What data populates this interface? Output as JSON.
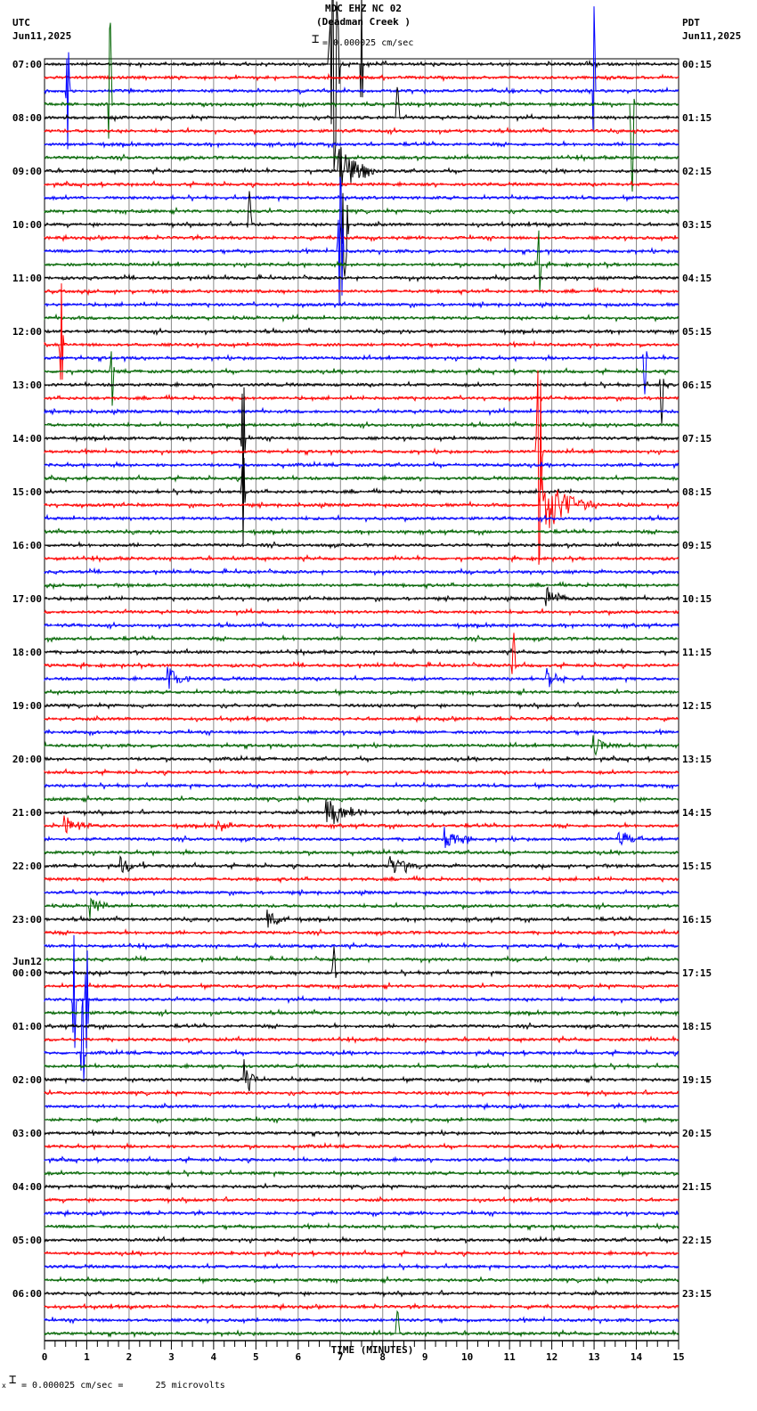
{
  "header": {
    "station": "MDC EHZ NC 02",
    "location": "(Deadman Creek )",
    "left_tz": "UTC",
    "left_date": "Jun11,2025",
    "right_tz": "PDT",
    "right_date": "Jun11,2025",
    "scale_text": "= 0.000025 cm/sec"
  },
  "footer": {
    "scale_text": "= 0.000025 cm/sec =      25 microvolts",
    "prefix": "x"
  },
  "chart_data": {
    "type": "line",
    "title": "MDC EHZ NC 02 (Deadman Creek )",
    "xlabel": "TIME (MINUTES)",
    "ylabel": "",
    "xlim": [
      0,
      15
    ],
    "x_ticks": [
      0,
      1,
      2,
      3,
      4,
      5,
      6,
      7,
      8,
      9,
      10,
      11,
      12,
      13,
      14,
      15
    ],
    "grid": true,
    "traces_per_hour": 4,
    "trace_count": 96,
    "trace_colors": [
      "#000000",
      "#ff0000",
      "#0000ff",
      "#006400"
    ],
    "left_labels": [
      {
        "row": 0,
        "text": "07:00"
      },
      {
        "row": 4,
        "text": "08:00"
      },
      {
        "row": 8,
        "text": "09:00"
      },
      {
        "row": 12,
        "text": "10:00"
      },
      {
        "row": 16,
        "text": "11:00"
      },
      {
        "row": 20,
        "text": "12:00"
      },
      {
        "row": 24,
        "text": "13:00"
      },
      {
        "row": 28,
        "text": "14:00"
      },
      {
        "row": 32,
        "text": "15:00"
      },
      {
        "row": 36,
        "text": "16:00"
      },
      {
        "row": 40,
        "text": "17:00"
      },
      {
        "row": 44,
        "text": "18:00"
      },
      {
        "row": 48,
        "text": "19:00"
      },
      {
        "row": 52,
        "text": "20:00"
      },
      {
        "row": 56,
        "text": "21:00"
      },
      {
        "row": 60,
        "text": "22:00"
      },
      {
        "row": 64,
        "text": "23:00"
      },
      {
        "row": 68,
        "text": "00:00",
        "date": "Jun12"
      },
      {
        "row": 72,
        "text": "01:00"
      },
      {
        "row": 76,
        "text": "02:00"
      },
      {
        "row": 80,
        "text": "03:00"
      },
      {
        "row": 84,
        "text": "04:00"
      },
      {
        "row": 88,
        "text": "05:00"
      },
      {
        "row": 92,
        "text": "06:00"
      }
    ],
    "right_labels": [
      {
        "row": 0,
        "text": "00:15"
      },
      {
        "row": 4,
        "text": "01:15"
      },
      {
        "row": 8,
        "text": "02:15"
      },
      {
        "row": 12,
        "text": "03:15"
      },
      {
        "row": 16,
        "text": "04:15"
      },
      {
        "row": 20,
        "text": "05:15"
      },
      {
        "row": 24,
        "text": "06:15"
      },
      {
        "row": 28,
        "text": "07:15"
      },
      {
        "row": 32,
        "text": "08:15"
      },
      {
        "row": 36,
        "text": "09:15"
      },
      {
        "row": 40,
        "text": "10:15"
      },
      {
        "row": 44,
        "text": "11:15"
      },
      {
        "row": 48,
        "text": "12:15"
      },
      {
        "row": 52,
        "text": "13:15"
      },
      {
        "row": 56,
        "text": "14:15"
      },
      {
        "row": 60,
        "text": "15:15"
      },
      {
        "row": 64,
        "text": "16:15"
      },
      {
        "row": 68,
        "text": "17:15"
      },
      {
        "row": 72,
        "text": "18:15"
      },
      {
        "row": 76,
        "text": "19:15"
      },
      {
        "row": 80,
        "text": "20:15"
      },
      {
        "row": 84,
        "text": "21:15"
      },
      {
        "row": 88,
        "text": "22:15"
      },
      {
        "row": 92,
        "text": "23:15"
      }
    ],
    "events": [
      {
        "row": 2,
        "minute": 0.55,
        "amp": 70,
        "dur": 0.05,
        "type": "spike"
      },
      {
        "row": 3,
        "minute": 1.55,
        "amp": 110,
        "dur": 0.05,
        "type": "spike"
      },
      {
        "row": 0,
        "minute": 6.85,
        "amp": 120,
        "dur": 0.15,
        "type": "spike"
      },
      {
        "row": 0,
        "minute": 7.5,
        "amp": 80,
        "dur": 0.04,
        "type": "spike"
      },
      {
        "row": 4,
        "minute": 8.35,
        "amp": 40,
        "dur": 0.05,
        "type": "spike"
      },
      {
        "row": 8,
        "minute": 7.0,
        "amp": 30,
        "dur": 0.8,
        "type": "burst"
      },
      {
        "row": 12,
        "minute": 7.1,
        "amp": 60,
        "dur": 0.1,
        "type": "spike"
      },
      {
        "row": 14,
        "minute": 7.0,
        "amp": 90,
        "dur": 0.08,
        "type": "spike"
      },
      {
        "row": 12,
        "minute": 4.85,
        "amp": 40,
        "dur": 0.05,
        "type": "spike"
      },
      {
        "row": 2,
        "minute": 13.0,
        "amp": 100,
        "dur": 0.04,
        "type": "spike"
      },
      {
        "row": 3,
        "minute": 13.9,
        "amp": 110,
        "dur": 0.05,
        "type": "spike"
      },
      {
        "row": 15,
        "minute": 11.7,
        "amp": 45,
        "dur": 0.05,
        "type": "spike"
      },
      {
        "row": 21,
        "minute": 0.4,
        "amp": 70,
        "dur": 0.05,
        "type": "spike"
      },
      {
        "row": 23,
        "minute": 1.6,
        "amp": 40,
        "dur": 0.05,
        "type": "spike"
      },
      {
        "row": 22,
        "minute": 14.2,
        "amp": 40,
        "dur": 0.05,
        "type": "spike"
      },
      {
        "row": 24,
        "minute": 14.6,
        "amp": 45,
        "dur": 0.05,
        "type": "spike"
      },
      {
        "row": 28,
        "minute": 4.7,
        "amp": 90,
        "dur": 0.05,
        "type": "spike"
      },
      {
        "row": 32,
        "minute": 4.7,
        "amp": 60,
        "dur": 0.05,
        "type": "spike"
      },
      {
        "row": 29,
        "minute": 11.7,
        "amp": 140,
        "dur": 0.08,
        "type": "spike"
      },
      {
        "row": 33,
        "minute": 11.7,
        "amp": 45,
        "dur": 1.4,
        "type": "quake"
      },
      {
        "row": 40,
        "minute": 11.9,
        "amp": 14,
        "dur": 0.5,
        "type": "burst"
      },
      {
        "row": 46,
        "minute": 2.95,
        "amp": 14,
        "dur": 0.5,
        "type": "burst"
      },
      {
        "row": 46,
        "minute": 11.9,
        "amp": 14,
        "dur": 0.5,
        "type": "burst"
      },
      {
        "row": 45,
        "minute": 11.1,
        "amp": 40,
        "dur": 0.05,
        "type": "spike"
      },
      {
        "row": 51,
        "minute": 13.0,
        "amp": 12,
        "dur": 0.7,
        "type": "burst"
      },
      {
        "row": 56,
        "minute": 6.7,
        "amp": 16,
        "dur": 1.0,
        "type": "burst"
      },
      {
        "row": 57,
        "minute": 0.5,
        "amp": 10,
        "dur": 0.6,
        "type": "burst"
      },
      {
        "row": 57,
        "minute": 4.1,
        "amp": 10,
        "dur": 0.5,
        "type": "burst"
      },
      {
        "row": 58,
        "minute": 9.5,
        "amp": 14,
        "dur": 0.6,
        "type": "burst"
      },
      {
        "row": 58,
        "minute": 13.6,
        "amp": 12,
        "dur": 0.5,
        "type": "burst"
      },
      {
        "row": 60,
        "minute": 8.2,
        "amp": 12,
        "dur": 0.8,
        "type": "burst"
      },
      {
        "row": 60,
        "minute": 1.8,
        "amp": 10,
        "dur": 0.6,
        "type": "burst"
      },
      {
        "row": 64,
        "minute": 5.3,
        "amp": 12,
        "dur": 0.5,
        "type": "burst"
      },
      {
        "row": 63,
        "minute": 1.1,
        "amp": 12,
        "dur": 0.5,
        "type": "burst"
      },
      {
        "row": 68,
        "minute": 6.85,
        "amp": 30,
        "dur": 0.05,
        "type": "spike"
      },
      {
        "row": 70,
        "minute": 0.7,
        "amp": 80,
        "dur": 0.05,
        "type": "spike"
      },
      {
        "row": 70,
        "minute": 1.0,
        "amp": 70,
        "dur": 0.05,
        "type": "spike"
      },
      {
        "row": 76,
        "minute": 4.75,
        "amp": 25,
        "dur": 0.3,
        "type": "burst"
      },
      {
        "row": 74,
        "minute": 0.9,
        "amp": 70,
        "dur": 0.05,
        "type": "spike"
      },
      {
        "row": 95,
        "minute": 8.35,
        "amp": 30,
        "dur": 0.05,
        "type": "spike"
      }
    ]
  }
}
